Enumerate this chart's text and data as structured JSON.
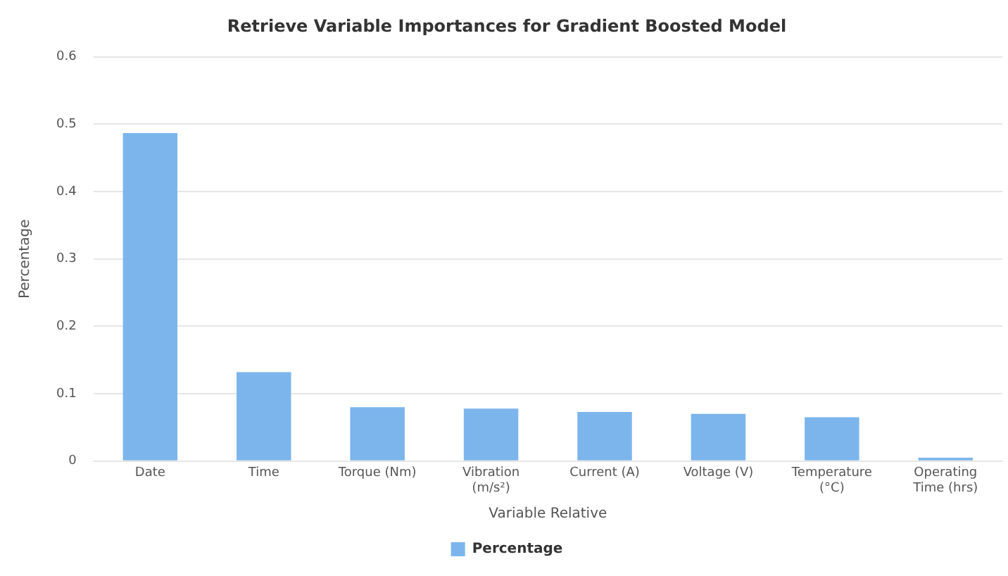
{
  "chart_data": {
    "type": "bar",
    "title": "Retrieve Variable Importances for Gradient Boosted Model",
    "xlabel": "Variable Relative",
    "ylabel": "Percentage",
    "categories": [
      "Date",
      "Time",
      "Torque (Nm)",
      "Vibration (m/s²)",
      "Current (A)",
      "Voltage (V)",
      "Temperature (°C)",
      "Operating Time (hrs)"
    ],
    "series": [
      {
        "name": "Percentage",
        "color": "#7cb5ec",
        "values": [
          0.487,
          0.132,
          0.08,
          0.078,
          0.073,
          0.07,
          0.065,
          0.005
        ]
      }
    ],
    "ylim": [
      0,
      0.6
    ],
    "yticks": [
      0,
      0.1,
      0.2,
      0.3,
      0.4,
      0.5,
      0.6
    ],
    "grid": "y",
    "legend": "bottom"
  }
}
